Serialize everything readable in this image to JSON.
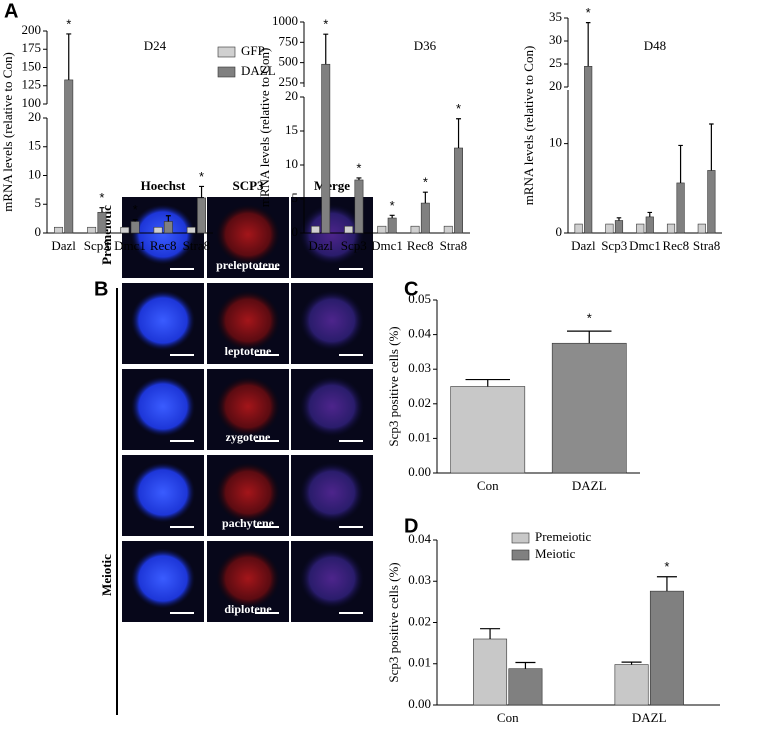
{
  "panel_labels": [
    "A",
    "B",
    "C",
    "D"
  ],
  "microscopy": {
    "columns": [
      "Hoechst",
      "SCP3",
      "Merge"
    ],
    "groups": [
      "Premeiotic",
      "Meiotic"
    ],
    "stages": [
      "preleptotene",
      "leptotene",
      "zygotene",
      "pachytene",
      "diplotene"
    ]
  },
  "chart_data": [
    {
      "type": "bar",
      "title": "D24",
      "y_label": "mRNA levels (relative to Con)",
      "categories": [
        "Dazl",
        "Scp3",
        "Dmc1",
        "Rec8",
        "Stra8"
      ],
      "series": [
        {
          "name": "GFP",
          "color": "#d0d0d0",
          "values": [
            1,
            1,
            1,
            1,
            1
          ]
        },
        {
          "name": "DAZL",
          "color": "#808080",
          "values": [
            133,
            3.6,
            2.0,
            2.0,
            6.1
          ],
          "errors": [
            63,
            0.8,
            0.3,
            1.0,
            2.0
          ],
          "annotations": [
            "*",
            "*",
            "*",
            null,
            "*"
          ]
        }
      ],
      "ylim": [
        0,
        200
      ],
      "ybreak": [
        20,
        100
      ],
      "yticks": [
        0,
        5,
        10,
        15,
        20,
        100,
        125,
        150,
        175,
        200
      ],
      "legend": true
    },
    {
      "type": "bar",
      "title": "D36",
      "y_label": "mRNA levels (relative to Con)",
      "categories": [
        "Dazl",
        "Scp3",
        "Dmc1",
        "Rec8",
        "Stra8"
      ],
      "series": [
        {
          "color": "#d0d0d0",
          "values": [
            1,
            1,
            1,
            1,
            1
          ]
        },
        {
          "color": "#808080",
          "values": [
            480,
            7.8,
            2.2,
            4.4,
            12.5
          ],
          "errors": [
            370,
            0.3,
            0.4,
            1.6,
            4.3
          ],
          "annotations": [
            "*",
            "*",
            "*",
            "*",
            "*"
          ]
        }
      ],
      "ylim": [
        0,
        1000
      ],
      "ybreak": [
        20,
        200
      ],
      "yticks": [
        0,
        5,
        10,
        15,
        20,
        250,
        500,
        750,
        1000
      ],
      "legend": false
    },
    {
      "type": "bar",
      "title": "D48",
      "y_label": "mRNA levels (relative to Con)",
      "categories": [
        "Dazl",
        "Scp3",
        "Dmc1",
        "Rec8",
        "Stra8"
      ],
      "series": [
        {
          "color": "#d0d0d0",
          "values": [
            1,
            1,
            1,
            1,
            1
          ]
        },
        {
          "color": "#808080",
          "values": [
            24.5,
            1.4,
            1.8,
            5.6,
            7.0
          ],
          "errors": [
            9.5,
            0.3,
            0.5,
            4.2,
            5.2
          ],
          "annotations": [
            "*",
            null,
            null,
            null,
            null
          ]
        }
      ],
      "ylim": [
        0,
        35
      ],
      "ybreak": [
        16,
        20
      ],
      "yticks": [
        0,
        10,
        20,
        25,
        30,
        35
      ],
      "legend": false
    },
    {
      "type": "bar",
      "y_label": "Scp3 positive cells (%)",
      "categories": [
        "Con",
        "DAZL"
      ],
      "series": [
        {
          "colors": [
            "#c8c8c8",
            "#8c8c8c"
          ],
          "values": [
            0.025,
            0.0375
          ],
          "errors": [
            0.002,
            0.0035
          ],
          "annotations": [
            null,
            "*"
          ]
        }
      ],
      "ylim": [
        0,
        0.05
      ],
      "yticks": [
        {
          "value": 0,
          "label": "0.00"
        },
        {
          "value": 0.01,
          "label": "0.01"
        },
        {
          "value": 0.02,
          "label": "0.02"
        },
        {
          "value": 0.03,
          "label": "0.03"
        },
        {
          "value": 0.04,
          "label": "0.04"
        },
        {
          "value": 0.05,
          "label": "0.05"
        }
      ],
      "legend": false
    },
    {
      "type": "bar",
      "y_label": "Scp3 positive cells (%)",
      "categories": [
        "Con",
        "DAZL"
      ],
      "series": [
        {
          "name": "Premeiotic",
          "color": "#c8c8c8",
          "values": [
            0.016,
            0.0098
          ],
          "errors": [
            0.0025,
            0.0006
          ]
        },
        {
          "name": "Meiotic",
          "color": "#808080",
          "values": [
            0.0088,
            0.0276
          ],
          "errors": [
            0.0015,
            0.0035
          ],
          "annotations": [
            null,
            "*"
          ]
        }
      ],
      "ylim": [
        0,
        0.04
      ],
      "yticks": [
        {
          "value": 0,
          "label": "0.00"
        },
        {
          "value": 0.01,
          "label": "0.01"
        },
        {
          "value": 0.02,
          "label": "0.02"
        },
        {
          "value": 0.03,
          "label": "0.03"
        },
        {
          "value": 0.04,
          "label": "0.04"
        }
      ],
      "legend": true
    }
  ]
}
